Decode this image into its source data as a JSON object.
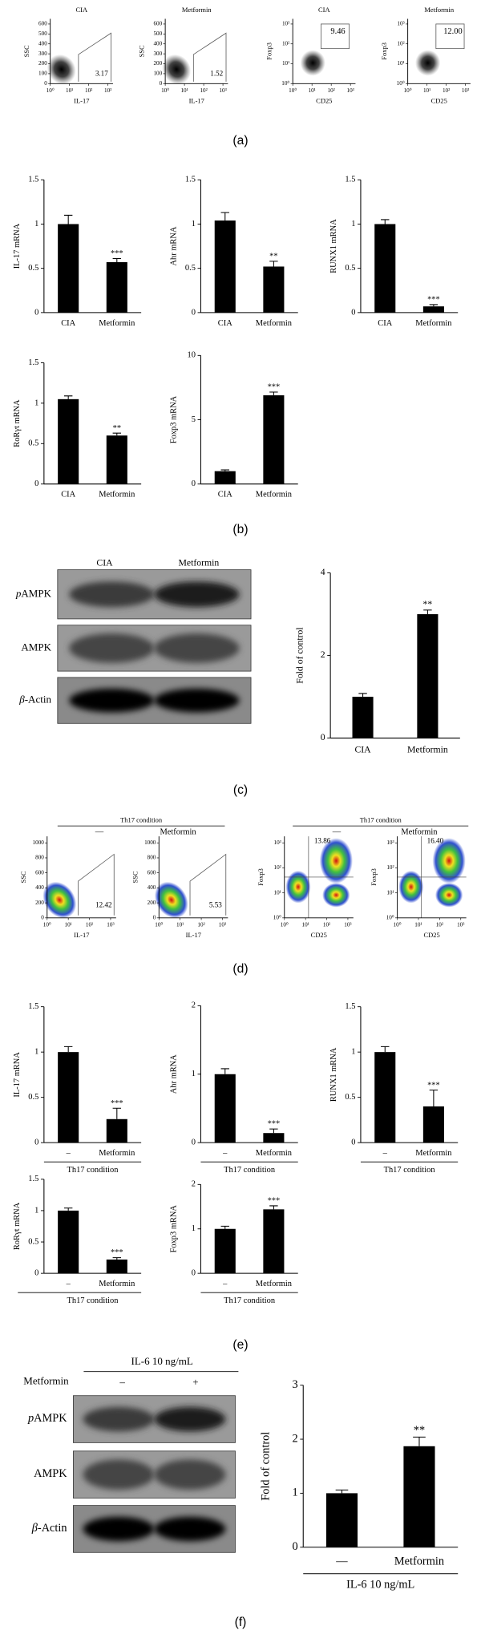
{
  "panel_labels": [
    "(a)",
    "(b)",
    "(c)",
    "(d)",
    "(e)",
    "(f)"
  ],
  "flow_a": [
    {
      "title": "CIA",
      "ylabel": "SSC",
      "xlabel": "IL-17",
      "yticks": [
        0,
        100,
        200,
        300,
        400,
        500,
        600
      ],
      "xticks": [
        "10⁰",
        "10¹",
        "10²",
        "10³"
      ],
      "gate": "3.17"
    },
    {
      "title": "Metformin",
      "ylabel": "SSC",
      "xlabel": "IL-17",
      "yticks": [
        0,
        100,
        200,
        300,
        400,
        500,
        600
      ],
      "xticks": [
        "10⁰",
        "10¹",
        "10²",
        "10³"
      ],
      "gate": "1.52"
    },
    {
      "title": "CIA",
      "ylabel": "Foxp3",
      "xlabel": "CD25",
      "yticks": [
        "10⁰",
        "10¹",
        "10²",
        "10³"
      ],
      "xticks": [
        "10⁰",
        "10¹",
        "10²",
        "10³"
      ],
      "gate": "9.46"
    },
    {
      "title": "Metformin",
      "ylabel": "Foxp3",
      "xlabel": "CD25",
      "yticks": [
        "10⁰",
        "10¹",
        "10²",
        "10³"
      ],
      "xticks": [
        "10⁰",
        "10¹",
        "10²",
        "10³"
      ],
      "gate": "12.00"
    }
  ],
  "flow_d": {
    "conditions": [
      {
        "label": "Th17 condition",
        "treatments": [
          "—",
          "Metformin"
        ]
      },
      {
        "label": "Th17 condition",
        "treatments": [
          "—",
          "Metformin"
        ]
      }
    ],
    "plots": [
      {
        "ylabel": "SSC",
        "xlabel": "IL-17",
        "yticks": [
          0,
          200,
          400,
          600,
          800,
          1000
        ],
        "xticks": [
          "10⁰",
          "10¹",
          "10²",
          "10³"
        ],
        "gate": "12.42"
      },
      {
        "ylabel": "SSC",
        "xlabel": "IL-17",
        "yticks": [
          0,
          200,
          400,
          600,
          800,
          1000
        ],
        "xticks": [
          "10⁰",
          "10¹",
          "10²",
          "10³"
        ],
        "gate": "5.53"
      },
      {
        "ylabel": "Foxp3",
        "xlabel": "CD25",
        "yticks": [
          "10⁰",
          "10¹",
          "10²",
          "10³"
        ],
        "xticks": [
          "10⁰",
          "10¹",
          "10²",
          "10³"
        ],
        "gate": "13.86"
      },
      {
        "ylabel": "Foxp3",
        "xlabel": "CD25",
        "yticks": [
          "10⁰",
          "10¹",
          "10²",
          "10³"
        ],
        "xticks": [
          "10⁰",
          "10¹",
          "10²",
          "10³"
        ],
        "gate": "16.40"
      }
    ]
  },
  "blot_c": {
    "columns": [
      "CIA",
      "Metformin"
    ],
    "rows": [
      {
        "prefix": "p",
        "name": "AMPK"
      },
      {
        "name": "AMPK"
      },
      {
        "prefix": "β",
        "name": "-Actin"
      }
    ]
  },
  "blot_f": {
    "header": "IL-6 10 ng/mL",
    "row_header": "Metformin",
    "columns": [
      "–",
      "+"
    ],
    "rows": [
      {
        "prefix": "p",
        "name": "AMPK"
      },
      {
        "name": "AMPK"
      },
      {
        "prefix": "β",
        "name": "-Actin"
      }
    ]
  },
  "chart_data": [
    {
      "type": "bar",
      "ylabel": "IL-17 mRNA",
      "categories": [
        "CIA",
        "Metformin"
      ],
      "values": [
        1.0,
        0.57
      ],
      "errors": [
        0.1,
        0.04
      ],
      "significance": [
        null,
        "***"
      ],
      "ylim": [
        0,
        1.5
      ],
      "yticks": [
        0,
        0.5,
        1,
        1.5
      ],
      "color": "#000000"
    },
    {
      "type": "bar",
      "ylabel": "Ahr mRNA",
      "categories": [
        "CIA",
        "Metformin"
      ],
      "values": [
        1.04,
        0.52
      ],
      "errors": [
        0.09,
        0.06
      ],
      "significance": [
        null,
        "**"
      ],
      "ylim": [
        0,
        1.5
      ],
      "yticks": [
        0,
        0.5,
        1,
        1.5
      ],
      "color": "#000000"
    },
    {
      "type": "bar",
      "ylabel": "RUNX1 mRNA",
      "categories": [
        "CIA",
        "Metformin"
      ],
      "values": [
        1.0,
        0.07
      ],
      "errors": [
        0.05,
        0.02
      ],
      "significance": [
        null,
        "***"
      ],
      "ylim": [
        0,
        1.5
      ],
      "yticks": [
        0,
        0.5,
        1,
        1.5
      ],
      "color": "#000000"
    },
    {
      "type": "bar",
      "ylabel": "RoRγt mRNA",
      "categories": [
        "CIA",
        "Metformin"
      ],
      "values": [
        1.05,
        0.6
      ],
      "errors": [
        0.04,
        0.03
      ],
      "significance": [
        null,
        "**"
      ],
      "ylim": [
        0,
        1.5
      ],
      "yticks": [
        0,
        0.5,
        1,
        1.5
      ],
      "color": "#000000"
    },
    {
      "type": "bar",
      "ylabel": "Foxp3 mRNA",
      "categories": [
        "CIA",
        "Metformin"
      ],
      "values": [
        1.0,
        6.9
      ],
      "errors": [
        0.1,
        0.25
      ],
      "significance": [
        null,
        "***"
      ],
      "ylim": [
        0,
        10
      ],
      "yticks": [
        0,
        5,
        10
      ],
      "color": "#000000"
    },
    {
      "type": "bar",
      "ylabel": "Fold of control",
      "categories": [
        "CIA",
        "Metformin"
      ],
      "values": [
        1.0,
        3.0
      ],
      "errors": [
        0.08,
        0.1
      ],
      "significance": [
        null,
        "**"
      ],
      "ylim": [
        0,
        4
      ],
      "yticks": [
        0,
        2,
        4
      ],
      "color": "#000000"
    },
    {
      "type": "bar",
      "ylabel": "IL-17 mRNA",
      "categories": [
        "–",
        "Metformin"
      ],
      "group_label": "Th17 condition",
      "values": [
        1.0,
        0.26
      ],
      "errors": [
        0.06,
        0.12
      ],
      "significance": [
        null,
        "***"
      ],
      "ylim": [
        0,
        1.5
      ],
      "yticks": [
        0,
        0.5,
        1,
        1.5
      ],
      "color": "#000000"
    },
    {
      "type": "bar",
      "ylabel": "Ahr mRNA",
      "categories": [
        "–",
        "Metformin"
      ],
      "group_label": "Th17 condition",
      "values": [
        1.0,
        0.14
      ],
      "errors": [
        0.08,
        0.06
      ],
      "significance": [
        null,
        "***"
      ],
      "ylim": [
        0,
        2
      ],
      "yticks": [
        0,
        1,
        2
      ],
      "color": "#000000"
    },
    {
      "type": "bar",
      "ylabel": "RUNX1 mRNA",
      "categories": [
        "–",
        "Metformin"
      ],
      "group_label": "Th17 condition",
      "values": [
        1.0,
        0.4
      ],
      "errors": [
        0.06,
        0.18
      ],
      "significance": [
        null,
        "***"
      ],
      "ylim": [
        0,
        1.5
      ],
      "yticks": [
        0,
        0.5,
        1,
        1.5
      ],
      "color": "#000000"
    },
    {
      "type": "bar",
      "ylabel": "RoRγt mRNA",
      "categories": [
        "–",
        "Metformin"
      ],
      "group_label": "Th17 condition",
      "values": [
        1.0,
        0.22
      ],
      "errors": [
        0.04,
        0.03
      ],
      "significance": [
        null,
        "***"
      ],
      "ylim": [
        0,
        1.5
      ],
      "yticks": [
        0,
        0.5,
        1,
        1.5
      ],
      "color": "#000000"
    },
    {
      "type": "bar",
      "ylabel": "Foxp3 mRNA",
      "categories": [
        "–",
        "Metformin"
      ],
      "group_label": "Th17 condition",
      "values": [
        1.0,
        1.44
      ],
      "errors": [
        0.06,
        0.08
      ],
      "significance": [
        null,
        "***"
      ],
      "ylim": [
        0,
        2
      ],
      "yticks": [
        0,
        1,
        2
      ],
      "color": "#000000"
    },
    {
      "type": "bar",
      "ylabel": "Fold of control",
      "categories": [
        "—",
        "Metformin"
      ],
      "group_label": "IL-6 10 ng/mL",
      "values": [
        1.0,
        1.87
      ],
      "errors": [
        0.06,
        0.17
      ],
      "significance": [
        null,
        "**"
      ],
      "ylim": [
        0,
        3
      ],
      "yticks": [
        0,
        1,
        2,
        3
      ],
      "color": "#000000"
    }
  ]
}
